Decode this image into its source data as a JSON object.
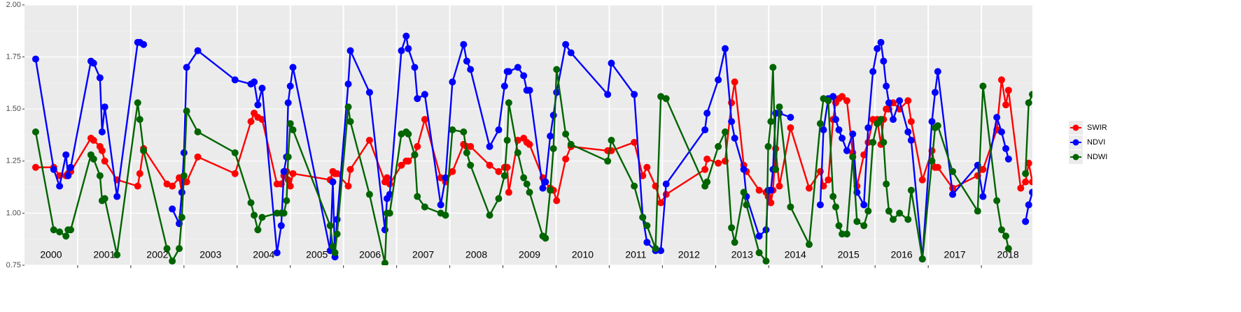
{
  "chart_data": {
    "type": "line",
    "x": [
      2000.21,
      2000.55,
      2000.66,
      2000.78,
      2000.82,
      2000.87,
      2001.25,
      2001.3,
      2001.42,
      2001.46,
      2001.51,
      2001.74,
      2002.13,
      2002.17,
      2002.24,
      2002.68,
      2002.78,
      2002.91,
      2002.96,
      2003.0,
      2003.05,
      2003.26,
      2003.96,
      2004.26,
      2004.32,
      2004.39,
      2004.47,
      2004.75,
      2004.83,
      2004.88,
      2004.93,
      2004.96,
      2005.0,
      2005.05,
      2005.75,
      2005.8,
      2005.84,
      2005.88,
      2006.09,
      2006.13,
      2006.49,
      2006.78,
      2006.82,
      2006.87,
      2007.09,
      2007.18,
      2007.22,
      2007.34,
      2007.39,
      2007.53,
      2007.83,
      2007.92,
      2008.05,
      2008.26,
      2008.32,
      2008.39,
      2008.75,
      2008.92,
      2009.03,
      2009.08,
      2009.11,
      2009.28,
      2009.39,
      2009.45,
      2009.5,
      2009.75,
      2009.8,
      2009.89,
      2009.95,
      2010.01,
      2010.18,
      2010.28,
      2010.97,
      2011.04,
      2011.47,
      2011.63,
      2011.71,
      2011.87,
      2011.97,
      2012.07,
      2012.8,
      2012.84,
      2013.05,
      2013.18,
      2013.3,
      2013.36,
      2013.53,
      2013.58,
      2013.82,
      2013.95,
      2013.99,
      2014.04,
      2014.08,
      2014.13,
      2014.2,
      2014.41,
      2014.76,
      2014.97,
      2015.03,
      2015.12,
      2015.21,
      2015.26,
      2015.32,
      2015.38,
      2015.47,
      2015.58,
      2015.66,
      2015.79,
      2015.87,
      2015.96,
      2016.04,
      2016.11,
      2016.16,
      2016.21,
      2016.26,
      2016.34,
      2016.46,
      2016.62,
      2016.68,
      2016.89,
      2017.07,
      2017.13,
      2017.18,
      2017.46,
      2017.93,
      2018.03,
      2018.29,
      2018.38,
      2018.46,
      2018.51,
      2018.74,
      2018.83,
      2018.89,
      2018.96
    ],
    "series": [
      {
        "name": "SWIR",
        "color": "#ff0000",
        "values": [
          1.22,
          1.22,
          1.18,
          1.18,
          1.19,
          1.2,
          1.36,
          1.35,
          1.32,
          1.3,
          1.25,
          1.16,
          1.13,
          1.19,
          1.31,
          1.14,
          1.13,
          1.17,
          1.1,
          1.15,
          1.15,
          1.27,
          1.19,
          1.44,
          1.48,
          1.46,
          1.45,
          1.14,
          1.14,
          1.18,
          1.2,
          1.16,
          1.13,
          1.19,
          1.16,
          1.2,
          1.19,
          1.19,
          1.13,
          1.21,
          1.35,
          1.15,
          1.17,
          1.14,
          1.23,
          1.25,
          1.25,
          1.28,
          1.32,
          1.45,
          1.17,
          1.15,
          1.2,
          1.33,
          1.32,
          1.32,
          1.23,
          1.2,
          1.22,
          1.22,
          1.1,
          1.35,
          1.36,
          1.34,
          1.33,
          1.17,
          1.15,
          1.12,
          1.11,
          1.06,
          1.26,
          1.32,
          1.3,
          1.3,
          1.34,
          1.18,
          1.22,
          1.13,
          1.05,
          1.09,
          1.21,
          1.26,
          1.24,
          1.25,
          1.53,
          1.63,
          1.23,
          1.2,
          1.11,
          1.1,
          1.08,
          1.05,
          1.11,
          1.31,
          1.13,
          1.41,
          1.12,
          1.2,
          1.13,
          1.16,
          1.45,
          1.53,
          1.55,
          1.56,
          1.54,
          1.29,
          1.13,
          1.28,
          1.34,
          1.45,
          1.45,
          1.33,
          1.45,
          1.5,
          1.5,
          1.53,
          1.5,
          1.54,
          1.44,
          1.16,
          1.3,
          1.22,
          1.22,
          1.12,
          1.18,
          1.21,
          1.4,
          1.64,
          1.52,
          1.59,
          1.12,
          1.15,
          1.24,
          1.15
        ]
      },
      {
        "name": "NDVI",
        "color": "#0000ff",
        "values": [
          1.74,
          1.21,
          1.13,
          1.28,
          1.18,
          1.22,
          1.73,
          1.72,
          1.65,
          1.39,
          1.51,
          1.08,
          1.82,
          1.82,
          1.81,
          null,
          1.02,
          0.95,
          1.1,
          1.29,
          1.7,
          1.78,
          1.64,
          1.62,
          1.63,
          1.52,
          1.6,
          0.81,
          0.94,
          1.2,
          1.27,
          1.53,
          1.61,
          1.7,
          0.82,
          1.15,
          0.79,
          0.97,
          1.62,
          1.78,
          1.58,
          0.92,
          1.07,
          1.09,
          1.78,
          1.85,
          1.79,
          1.7,
          1.55,
          1.57,
          1.04,
          1.17,
          1.63,
          1.81,
          1.73,
          1.69,
          1.32,
          1.4,
          1.61,
          1.68,
          1.68,
          1.7,
          1.66,
          1.59,
          1.59,
          1.12,
          1.15,
          1.37,
          1.47,
          1.58,
          1.81,
          1.77,
          1.57,
          1.72,
          1.57,
          0.98,
          0.86,
          0.82,
          0.82,
          1.14,
          1.4,
          1.48,
          1.64,
          1.79,
          1.44,
          1.36,
          1.21,
          1.08,
          0.89,
          0.92,
          1.11,
          1.11,
          1.21,
          1.48,
          1.48,
          1.46,
          null,
          1.04,
          1.4,
          1.55,
          1.56,
          1.45,
          1.4,
          1.36,
          1.3,
          1.38,
          1.1,
          1.04,
          1.41,
          1.68,
          1.79,
          1.82,
          1.73,
          1.61,
          1.53,
          1.45,
          1.54,
          1.39,
          1.35,
          0.78,
          1.44,
          1.58,
          1.68,
          1.09,
          1.23,
          1.08,
          1.46,
          1.39,
          1.31,
          1.26,
          null,
          0.96,
          1.04,
          1.1
        ]
      },
      {
        "name": "NDWI",
        "color": "#006400",
        "values": [
          1.39,
          0.92,
          0.91,
          0.89,
          0.92,
          0.92,
          1.28,
          1.26,
          1.18,
          1.06,
          1.07,
          0.8,
          1.53,
          1.45,
          1.3,
          0.83,
          0.77,
          0.83,
          0.98,
          1.18,
          1.49,
          1.39,
          1.29,
          1.05,
          0.99,
          0.92,
          0.98,
          1.0,
          1.0,
          1.0,
          1.06,
          1.27,
          1.43,
          1.4,
          0.94,
          0.84,
          0.81,
          0.9,
          1.51,
          1.44,
          1.09,
          0.76,
          1.0,
          1.0,
          1.38,
          1.39,
          1.38,
          1.28,
          1.08,
          1.03,
          1.0,
          0.99,
          1.4,
          1.39,
          1.29,
          1.23,
          0.99,
          1.07,
          1.18,
          1.35,
          1.53,
          1.29,
          1.17,
          1.14,
          1.1,
          0.89,
          0.88,
          1.11,
          1.31,
          1.69,
          1.38,
          1.33,
          1.25,
          1.35,
          1.13,
          0.98,
          0.94,
          0.83,
          1.56,
          1.55,
          1.13,
          1.15,
          1.32,
          1.39,
          0.93,
          0.86,
          1.1,
          1.04,
          0.81,
          0.77,
          1.32,
          1.44,
          1.7,
          1.21,
          1.51,
          1.03,
          0.85,
          1.43,
          1.55,
          1.54,
          1.08,
          1.03,
          0.94,
          0.9,
          0.9,
          1.27,
          0.96,
          0.94,
          1.01,
          1.34,
          1.43,
          1.45,
          1.34,
          1.14,
          1.01,
          0.97,
          1.0,
          0.97,
          1.11,
          0.78,
          1.25,
          1.41,
          1.42,
          1.2,
          1.01,
          1.61,
          1.06,
          0.92,
          0.89,
          0.83,
          null,
          1.19,
          1.53,
          1.57
        ]
      }
    ],
    "year_labels": [
      "2000",
      "2001",
      "2002",
      "2003",
      "2004",
      "2005",
      "2006",
      "2007",
      "2008",
      "2009",
      "2010",
      "2011",
      "2012",
      "2013",
      "2014",
      "2015",
      "2016",
      "2017",
      "2018"
    ],
    "xlim": [
      2000,
      2018.96
    ],
    "xticks": [
      2001,
      2002,
      2003,
      2004,
      2005,
      2006,
      2007,
      2008,
      2009,
      2010,
      2011,
      2012,
      2013,
      2014,
      2015,
      2016,
      2017,
      2018
    ],
    "ylim": [
      0.75,
      2
    ],
    "yticks": [
      0.75,
      {
        "value": 1,
        "label": "1.00"
      },
      1.25,
      {
        "value": 1.5,
        "label": "1.50"
      },
      1.75,
      {
        "value": 2,
        "label": "2.00"
      }
    ],
    "grid": true,
    "legend": "right"
  }
}
